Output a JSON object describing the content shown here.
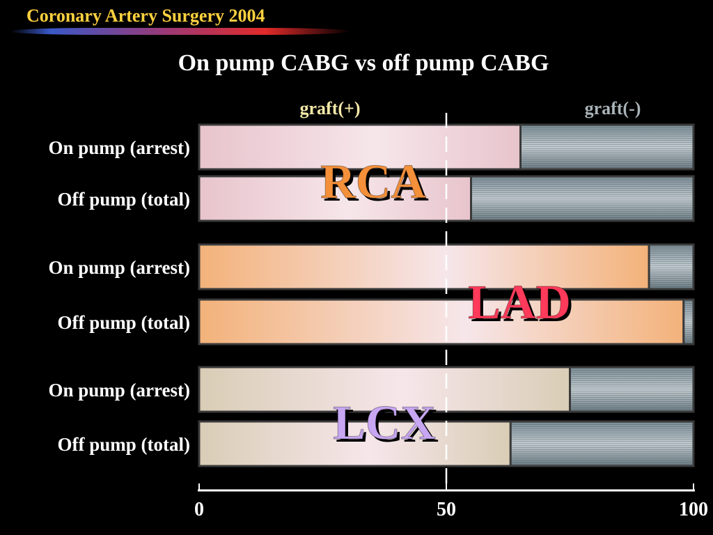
{
  "header": {
    "title": "Coronary Artery Surgery 2004"
  },
  "chart_data": {
    "type": "bar",
    "orientation": "horizontal-stacked-100",
    "title": "On pump CABG vs off pump CABG",
    "legend": [
      {
        "name": "graft(+)",
        "color": "#f5e9a8"
      },
      {
        "name": "graft(-)",
        "color": "#a9b3b8"
      }
    ],
    "xlim": [
      0,
      100
    ],
    "xticks": [
      "0",
      "50",
      "100"
    ],
    "reference_line": 50,
    "groups": [
      {
        "label": "RCA",
        "label_color": "#f4903a",
        "fill_color": "#e8c4cc",
        "rows": [
          {
            "label": "On pump (arrest)",
            "graft_pos": 65,
            "graft_neg": 35
          },
          {
            "label": "Off pump (total)",
            "graft_pos": 55,
            "graft_neg": 45
          }
        ]
      },
      {
        "label": "LAD",
        "label_color": "#ff3a5a",
        "fill_color": "#f3b27a",
        "rows": [
          {
            "label": "On pump (arrest)",
            "graft_pos": 91,
            "graft_neg": 9
          },
          {
            "label": "Off pump (total)",
            "graft_pos": 98,
            "graft_neg": 2
          }
        ]
      },
      {
        "label": "LCX",
        "label_color": "#c7a6f2",
        "fill_color": "#d9cdb6",
        "rows": [
          {
            "label": "On pump (arrest)",
            "graft_pos": 75,
            "graft_neg": 25
          },
          {
            "label": "Off pump (total)",
            "graft_pos": 63,
            "graft_neg": 37
          }
        ]
      }
    ]
  }
}
